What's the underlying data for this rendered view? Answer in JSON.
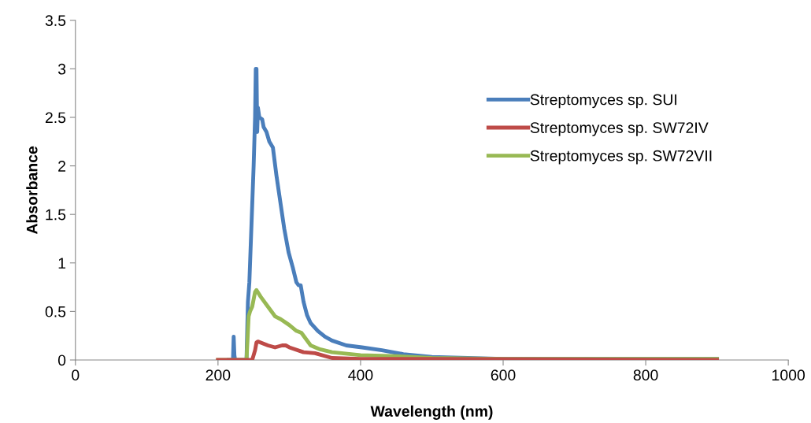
{
  "chart_data": {
    "type": "line",
    "xlabel": "Wavelength (nm)",
    "ylabel": "Absorbance",
    "xlim": [
      0,
      1000
    ],
    "xticks": [
      0,
      200,
      400,
      600,
      800,
      1000
    ],
    "ylim": [
      0,
      3.5
    ],
    "yticks": [
      0,
      0.5,
      1,
      1.5,
      2,
      2.5,
      3,
      3.5
    ],
    "grid": false,
    "legend": "right",
    "marker": "none",
    "line_style": "solid",
    "series": [
      {
        "name": "Streptomyces sp. SUI",
        "color": "#4a7ebb",
        "x": [
          215,
          221,
          222,
          223,
          224,
          240,
          242,
          244,
          247,
          250,
          252,
          253,
          254,
          255,
          256,
          258,
          262,
          264,
          268,
          272,
          277,
          282,
          288,
          293,
          299,
          305,
          310,
          313,
          316,
          320,
          325,
          330,
          340,
          350,
          360,
          380,
          402,
          430,
          460,
          500,
          550,
          600,
          900
        ],
        "values": [
          0,
          0,
          0.24,
          0.05,
          0,
          0,
          0.6,
          0.8,
          1.4,
          2.0,
          2.5,
          3.0,
          3.0,
          2.35,
          2.6,
          2.5,
          2.48,
          2.4,
          2.35,
          2.25,
          2.19,
          1.9,
          1.6,
          1.35,
          1.11,
          0.95,
          0.8,
          0.77,
          0.77,
          0.6,
          0.46,
          0.38,
          0.3,
          0.24,
          0.2,
          0.15,
          0.13,
          0.1,
          0.06,
          0.03,
          0.02,
          0.01,
          0.01
        ]
      },
      {
        "name": "Streptomyces sp. SW72IV",
        "color": "#be4b48",
        "x": [
          200,
          248,
          250,
          252,
          254,
          256,
          270,
          280,
          290,
          295,
          300,
          320,
          336,
          360,
          400,
          500,
          900
        ],
        "values": [
          0,
          0,
          0.05,
          0.1,
          0.18,
          0.19,
          0.15,
          0.13,
          0.15,
          0.15,
          0.13,
          0.08,
          0.07,
          0.02,
          0.01,
          0.01,
          0
        ]
      },
      {
        "name": "Streptomyces sp. SW72VII",
        "color": "#98b954",
        "x": [
          200,
          240,
          243,
          245,
          248,
          252,
          254,
          260,
          270,
          280,
          288,
          300,
          310,
          317,
          330,
          343,
          360,
          400,
          450,
          500,
          600,
          900
        ],
        "values": [
          0,
          0,
          0.45,
          0.5,
          0.55,
          0.7,
          0.72,
          0.65,
          0.55,
          0.45,
          0.42,
          0.36,
          0.3,
          0.28,
          0.15,
          0.11,
          0.08,
          0.05,
          0.04,
          0.02,
          0.01,
          0.01
        ]
      }
    ]
  }
}
